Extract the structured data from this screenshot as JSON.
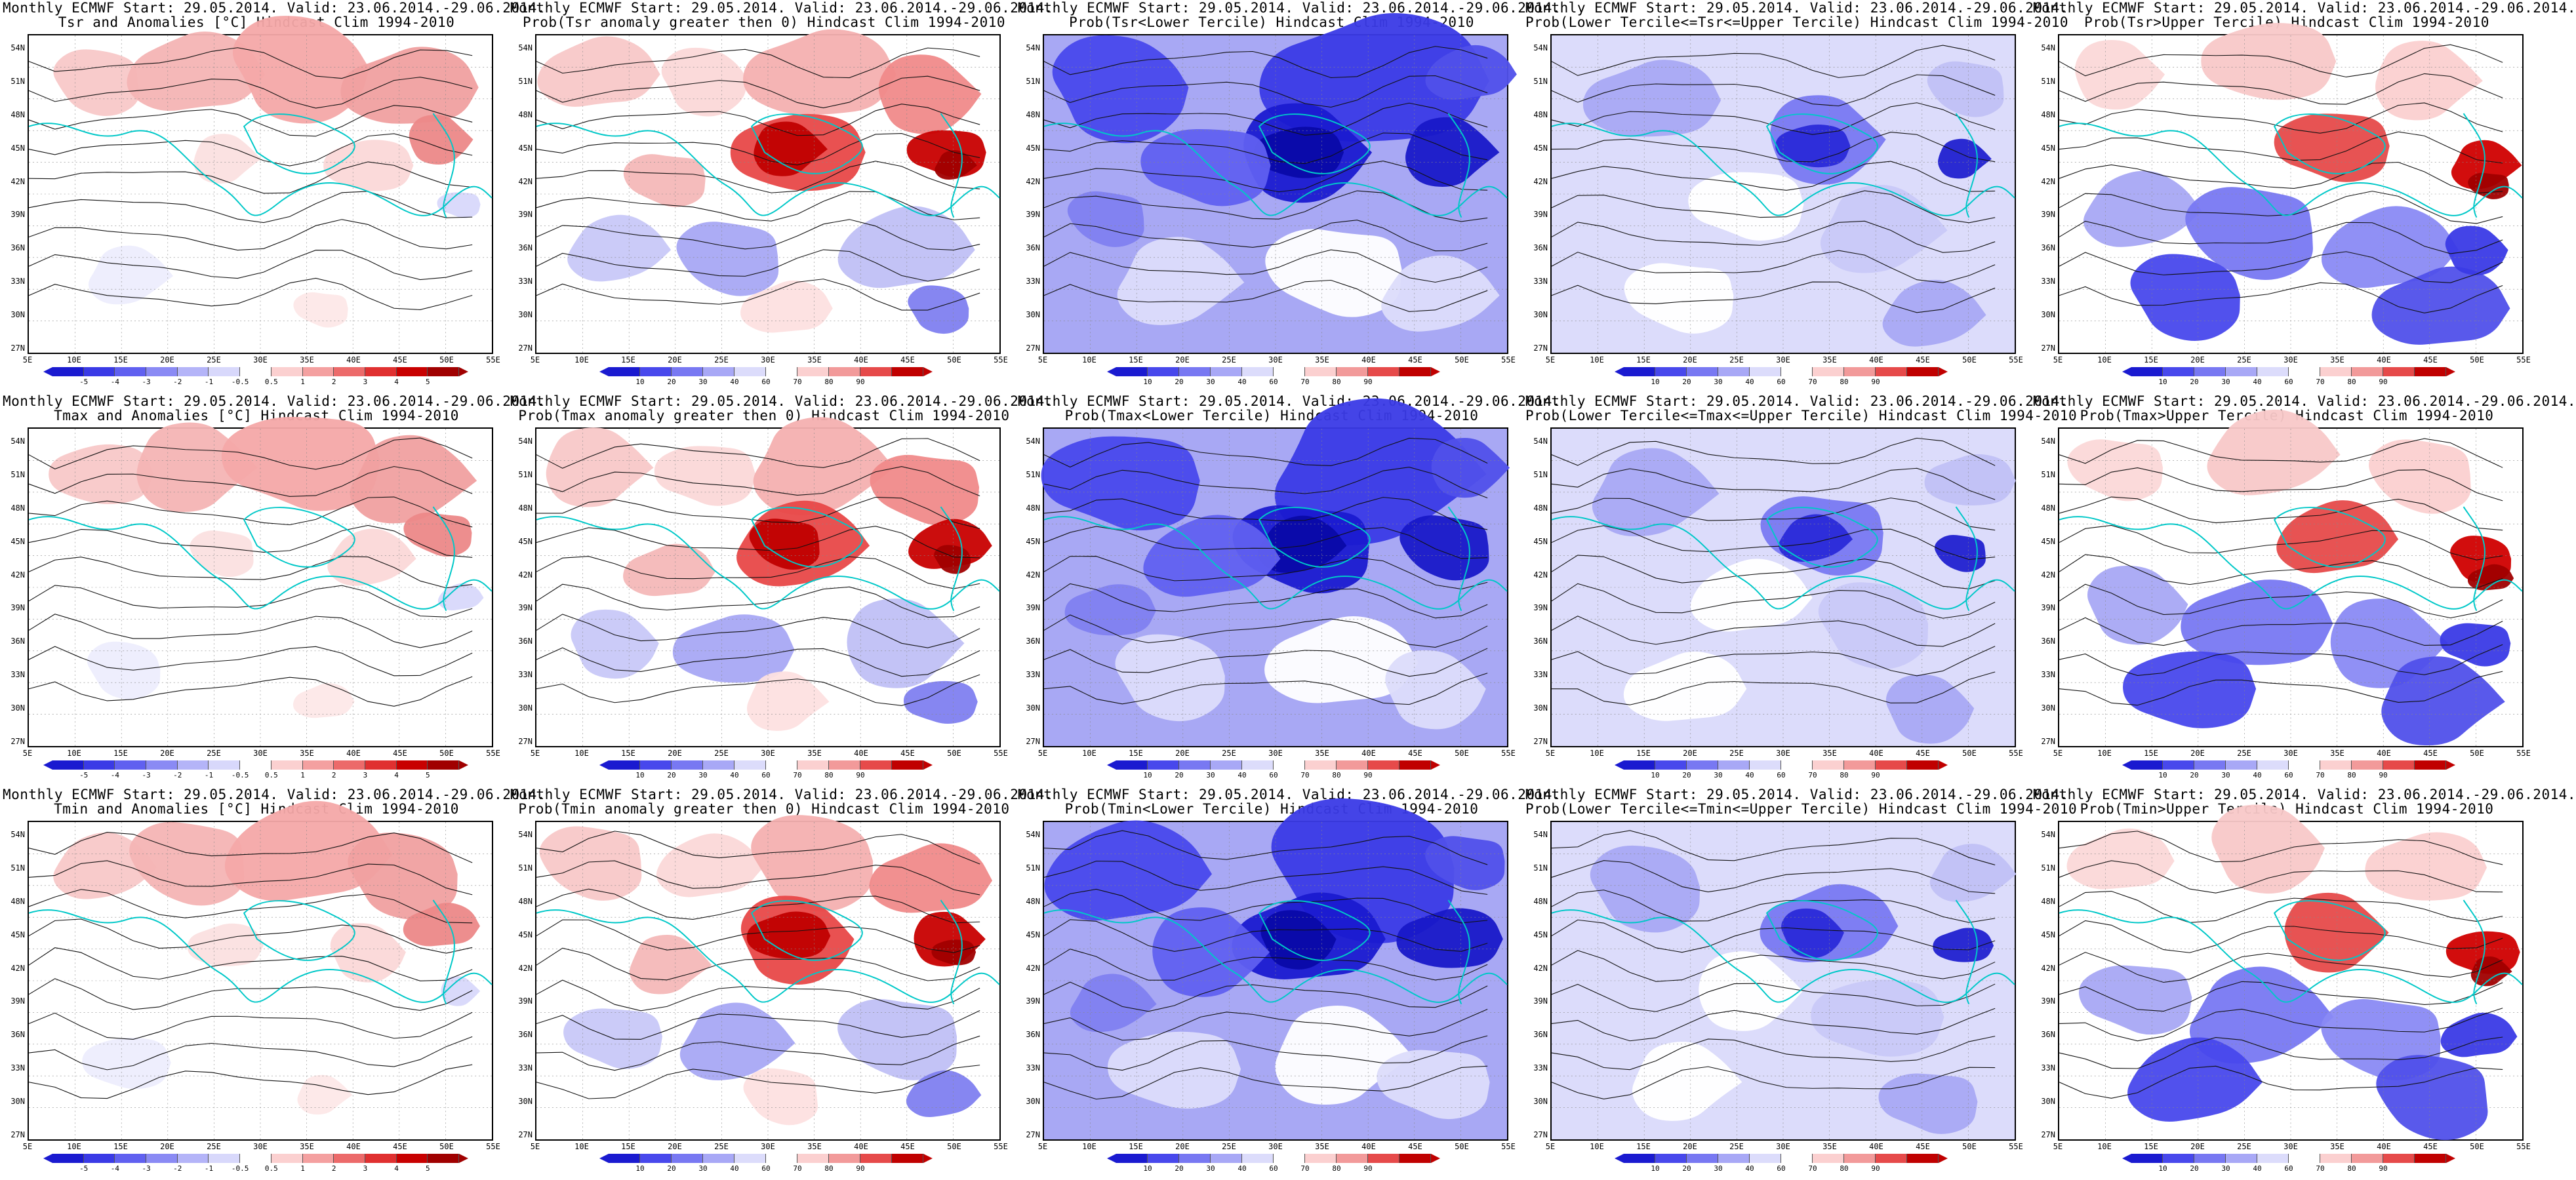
{
  "panels": [
    {
      "title1": "Monthly ECMWF Start: 29.05.2014. Valid: 23.06.2014.-29.06.2014.",
      "title2": "Tsr and Anomalies [°C] Hindcast Clim 1994-2010",
      "scale": "anom",
      "pattern": "warm_light"
    },
    {
      "title1": "Monthly ECMWF Start: 29.05.2014. Valid: 23.06.2014.-29.06.2014.",
      "title2": "Prob(Tsr anomaly greater then 0) Hindcast Clim 1994-2010",
      "scale": "prob",
      "pattern": "warm_strong"
    },
    {
      "title1": "Monthly ECMWF Start: 29.05.2014. Valid: 23.06.2014.-29.06.2014.",
      "title2": "Prob(Tsr<Lower Tercile) Hindcast Clim 1994-2010",
      "scale": "prob",
      "pattern": "cold_strong"
    },
    {
      "title1": "Monthly ECMWF Start: 29.05.2014. Valid: 23.06.2014.-29.06.2014.",
      "title2": "Prob(Lower Tercile<=Tsr<=Upper Tercile) Hindcast Clim 1994-2010",
      "scale": "prob",
      "pattern": "mid"
    },
    {
      "title1": "Monthly ECMWF Start: 29.05.2014. Valid: 23.06.2014.-29.06.2014.",
      "title2": "Prob(Tsr>Upper Tercile) Hindcast Clim 1994-2010",
      "scale": "prob",
      "pattern": "upper"
    },
    {
      "title1": "Monthly ECMWF Start: 29.05.2014. Valid: 23.06.2014.-29.06.2014.",
      "title2": "Tmax and Anomalies [°C] Hindcast Clim 1994-2010",
      "scale": "anom",
      "pattern": "warm_light"
    },
    {
      "title1": "Monthly ECMWF Start: 29.05.2014. Valid: 23.06.2014.-29.06.2014.",
      "title2": "Prob(Tmax anomaly greater then 0) Hindcast Clim 1994-2010",
      "scale": "prob",
      "pattern": "warm_strong"
    },
    {
      "title1": "Monthly ECMWF Start: 29.05.2014. Valid: 23.06.2014.-29.06.2014.",
      "title2": "Prob(Tmax<Lower Tercile) Hindcast Clim 1994-2010",
      "scale": "prob",
      "pattern": "cold_strong"
    },
    {
      "title1": "Monthly ECMWF Start: 29.05.2014. Valid: 23.06.2014.-29.06.2014.",
      "title2": "Prob(Lower Tercile<=Tmax<=Upper Tercile) Hindcast Clim 1994-2010",
      "scale": "prob",
      "pattern": "mid"
    },
    {
      "title1": "Monthly ECMWF Start: 29.05.2014. Valid: 23.06.2014.-29.06.2014.",
      "title2": "Prob(Tmax>Upper Tercile) Hindcast Clim 1994-2010",
      "scale": "prob",
      "pattern": "upper"
    },
    {
      "title1": "Monthly ECMWF Start: 29.05.2014. Valid: 23.06.2014.-29.06.2014.",
      "title2": "Tmin and Anomalies [°C] Hindcast Clim 1994-2010",
      "scale": "anom",
      "pattern": "warm_light"
    },
    {
      "title1": "Monthly ECMWF Start: 29.05.2014. Valid: 23.06.2014.-29.06.2014.",
      "title2": "Prob(Tmin anomaly greater then 0) Hindcast Clim 1994-2010",
      "scale": "prob",
      "pattern": "warm_strong"
    },
    {
      "title1": "Monthly ECMWF Start: 29.05.2014. Valid: 23.06.2014.-29.06.2014.",
      "title2": "Prob(Tmin<Lower Tercile) Hindcast Clim 1994-2010",
      "scale": "prob",
      "pattern": "cold_strong"
    },
    {
      "title1": "Monthly ECMWF Start: 29.05.2014. Valid: 23.06.2014.-29.06.2014.",
      "title2": "Prob(Lower Tercile<=Tmin<=Upper Tercile) Hindcast Clim 1994-2010",
      "scale": "prob",
      "pattern": "mid"
    },
    {
      "title1": "Monthly ECMWF Start: 29.05.2014. Valid: 23.06.2014.-29.06.2014.",
      "title2": "Prob(Tmin>Upper Tercile) Hindcast Clim 1994-2010",
      "scale": "prob",
      "pattern": "upper"
    }
  ],
  "lat_labels": [
    "54N",
    "51N",
    "48N",
    "45N",
    "42N",
    "39N",
    "36N",
    "33N",
    "30N",
    "27N"
  ],
  "lon_labels": [
    "5E",
    "10E",
    "15E",
    "20E",
    "25E",
    "30E",
    "35E",
    "40E",
    "45E",
    "50E",
    "55E"
  ],
  "colorbars": {
    "anom": {
      "labels": [
        "-5",
        "-4",
        "-3",
        "-2",
        "-1",
        "-0.5",
        "0.5",
        "1",
        "2",
        "3",
        "4",
        "5"
      ],
      "colors": [
        "#1a1ad0",
        "#3a3ae6",
        "#6060f0",
        "#8a8af4",
        "#b4b4f8",
        "#d8d8fb",
        "#ffffff",
        "#fbd0d0",
        "#f4a0a0",
        "#ec6a6a",
        "#e03030",
        "#c80000",
        "#a00000"
      ]
    },
    "prob": {
      "labels": [
        "10",
        "20",
        "30",
        "40",
        "60",
        "70",
        "80",
        "90"
      ],
      "colors": [
        "#1a1ad0",
        "#4848ec",
        "#7878f2",
        "#a8a8f6",
        "#dcdcfb",
        "#ffffff",
        "#fbd0d0",
        "#f29a9a",
        "#e64a4a",
        "#c00000"
      ]
    }
  },
  "palette": {
    "contour": "#111111",
    "coastline": "#00c8c8",
    "grid": "#888888"
  }
}
